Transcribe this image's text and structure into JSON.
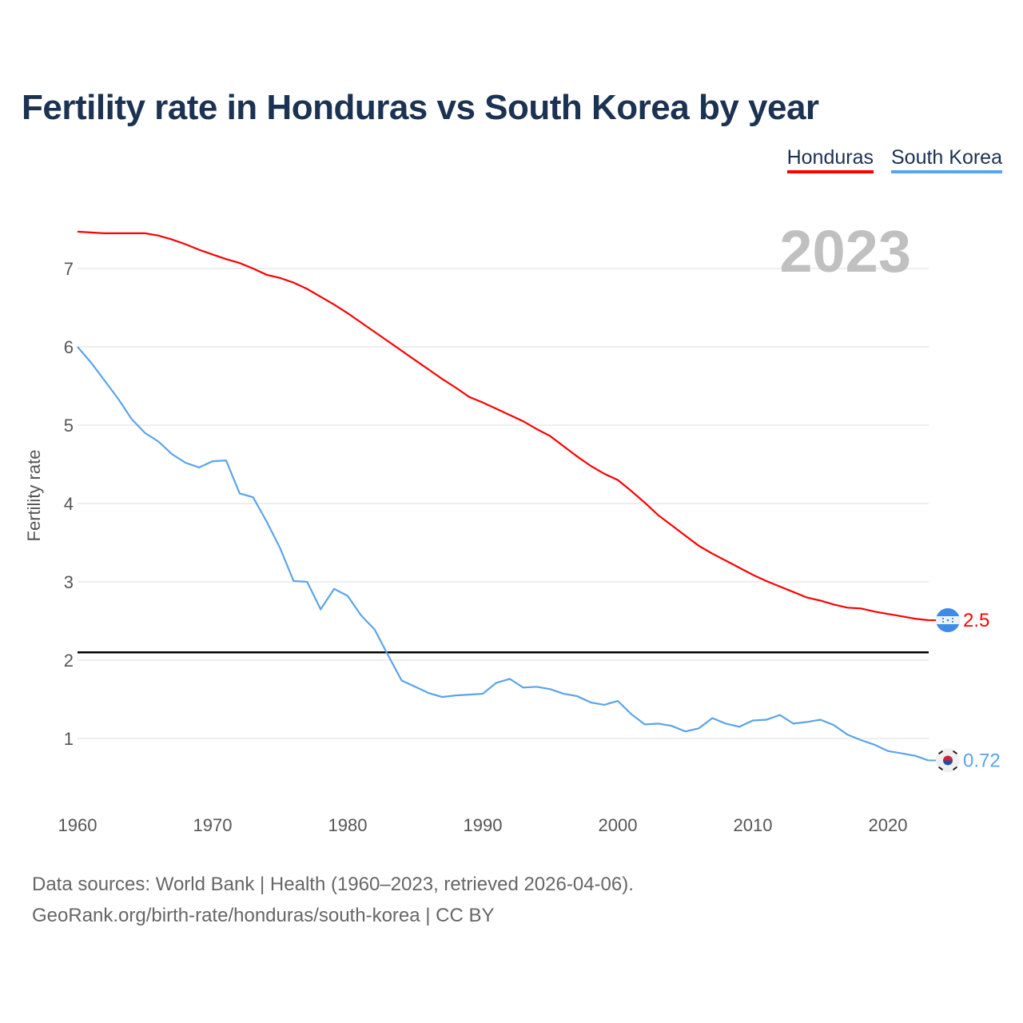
{
  "chart_data": {
    "type": "line",
    "title": "Fertility rate in Honduras vs South Korea by year",
    "xlabel": "",
    "ylabel": "Fertility rate",
    "xlim": [
      1960,
      2023
    ],
    "ylim": [
      0,
      7.8
    ],
    "x_ticks": [
      1960,
      1970,
      1980,
      1990,
      2000,
      2010,
      2020
    ],
    "y_ticks": [
      1,
      2,
      3,
      4,
      5,
      6,
      7
    ],
    "grid": true,
    "legend_position": "top-right",
    "year_label": "2023",
    "reference_line": 2.1,
    "x_start": 1960,
    "series": [
      {
        "name": "Honduras",
        "color": "#ff0000",
        "end_label": "2.5",
        "values": [
          7.47,
          7.46,
          7.45,
          7.45,
          7.45,
          7.45,
          7.42,
          7.37,
          7.31,
          7.24,
          7.18,
          7.12,
          7.07,
          7.0,
          6.92,
          6.88,
          6.82,
          6.74,
          6.64,
          6.54,
          6.43,
          6.31,
          6.19,
          6.07,
          5.95,
          5.83,
          5.71,
          5.59,
          5.48,
          5.36,
          5.29,
          5.21,
          5.13,
          5.05,
          4.95,
          4.86,
          4.73,
          4.6,
          4.48,
          4.38,
          4.3,
          4.16,
          4.01,
          3.85,
          3.72,
          3.59,
          3.46,
          3.36,
          3.27,
          3.18,
          3.09,
          3.01,
          2.94,
          2.87,
          2.8,
          2.76,
          2.71,
          2.67,
          2.66,
          2.62,
          2.59,
          2.56,
          2.53,
          2.51
        ]
      },
      {
        "name": "South Korea",
        "color": "#5ba4ea",
        "end_label": "0.72",
        "values": [
          6.0,
          5.8,
          5.57,
          5.34,
          5.08,
          4.9,
          4.79,
          4.63,
          4.52,
          4.46,
          4.54,
          4.55,
          4.13,
          4.08,
          3.77,
          3.43,
          3.01,
          3.0,
          2.65,
          2.91,
          2.82,
          2.57,
          2.39,
          2.06,
          1.74,
          1.66,
          1.58,
          1.53,
          1.55,
          1.56,
          1.57,
          1.71,
          1.76,
          1.65,
          1.66,
          1.63,
          1.57,
          1.54,
          1.46,
          1.43,
          1.48,
          1.31,
          1.18,
          1.19,
          1.16,
          1.09,
          1.13,
          1.26,
          1.19,
          1.15,
          1.23,
          1.24,
          1.3,
          1.19,
          1.21,
          1.24,
          1.17,
          1.05,
          0.98,
          0.92,
          0.84,
          0.81,
          0.78,
          0.72
        ]
      }
    ]
  },
  "footer": {
    "line1": "Data sources: World Bank | Health (1960–2023, retrieved 2026-04-06).",
    "line2": "GeoRank.org/birth-rate/honduras/south-korea | CC BY"
  }
}
